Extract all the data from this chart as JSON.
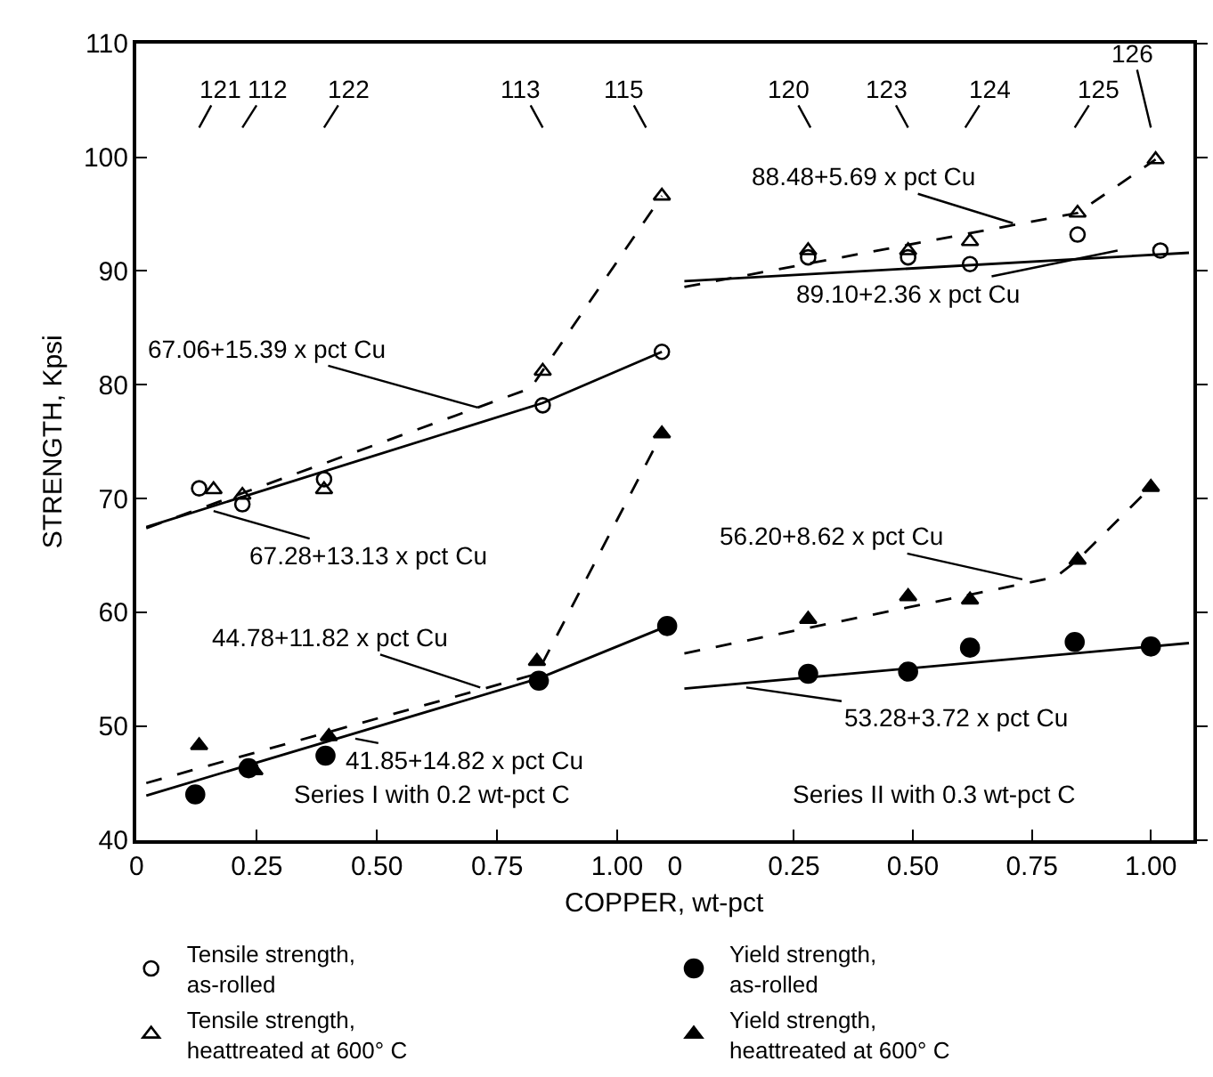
{
  "chart_data": [
    {
      "type": "scatter",
      "xlabel": "COPPER, wt-pct",
      "ylabel": "STRENGTH, Kpsi",
      "xlim": [
        0,
        1.12
      ],
      "xticks": [
        0,
        {
          "value": 0.25,
          "label": "0.25"
        },
        {
          "value": 0.5,
          "label": "0.50"
        },
        0.75,
        {
          "value": 1,
          "label": "1.00"
        }
      ],
      "ylim": [
        40,
        110
      ],
      "yticks": [
        40,
        50,
        60,
        70,
        80,
        90,
        100,
        110
      ],
      "legend": "bottom",
      "series": [
        {
          "name": "Tensile strength, as-rolled",
          "type": "scatter",
          "marker": "circle-open",
          "color": "#000000",
          "x": [
            0.13,
            0.22,
            0.39,
            0.845,
            1.093
          ],
          "values": [
            70.9,
            69.5,
            71.7,
            78.2,
            82.9
          ]
        },
        {
          "name": "Yield strength, as-rolled",
          "type": "scatter",
          "marker": "circle",
          "color": "#000000",
          "x": [
            0.122,
            0.233,
            0.393,
            0.837,
            1.104
          ],
          "values": [
            44.0,
            46.3,
            47.4,
            54.0,
            58.8
          ]
        },
        {
          "name": "Tensile strength, heattreated at 600° C",
          "type": "scatter",
          "marker": "triangle-open",
          "color": "#000000",
          "x": [
            0.16,
            0.22,
            0.39,
            0.845,
            1.093
          ],
          "values": [
            70.8,
            70.3,
            70.8,
            81.2,
            96.6
          ]
        },
        {
          "name": "Yield strength, heattreated at 600° C",
          "type": "scatter",
          "marker": "triangle",
          "color": "#000000",
          "x": [
            0.13,
            0.245,
            0.4,
            0.833,
            1.093
          ],
          "values": [
            48.3,
            46.1,
            49.1,
            55.7,
            75.7
          ]
        },
        {
          "type": "line",
          "line_style": "solid",
          "color": "#000000",
          "x": [
            0.02,
            0.845,
            1.093
          ],
          "values": [
            67.5,
            78.4,
            82.9
          ]
        },
        {
          "type": "line",
          "line_style": "dashed",
          "color": "#000000",
          "x": [
            0.02,
            0.82,
            1.093
          ],
          "values": [
            67.4,
            79.7,
            96.6
          ]
        },
        {
          "type": "line",
          "line_style": "solid",
          "color": "#000000",
          "x": [
            0.02,
            0.837,
            1.104
          ],
          "values": [
            43.9,
            54.2,
            58.8
          ]
        },
        {
          "type": "line",
          "line_style": "dashed",
          "color": "#000000",
          "x": [
            0.02,
            0.833,
            1.093
          ],
          "values": [
            45.0,
            54.6,
            75.7
          ]
        }
      ],
      "annotations": [
        "121",
        "112",
        "122",
        "113",
        "115",
        {
          "text": "67.06+15.39 x pct Cu",
          "x": 0.71,
          "y": 78.0
        },
        {
          "text": "67.28+13.13 x pct Cu",
          "x": 0.16,
          "y": 68.9
        },
        {
          "text": "44.78+11.82 x pct Cu",
          "x": 0.715,
          "y": 53.4
        },
        {
          "text": "41.85+14.82 x pct Cu",
          "x": 0.455,
          "y": 48.9
        },
        "Series I with 0.2 wt-pct C"
      ]
    },
    {
      "type": "scatter",
      "xlim": [
        0,
        1.09
      ],
      "xticks": [
        0,
        {
          "value": 0.25,
          "label": "0.25"
        },
        {
          "value": 0.5,
          "label": "0.50"
        },
        0.75,
        {
          "value": 1,
          "label": "1.00"
        }
      ],
      "ylim": [
        40,
        110
      ],
      "yticks": [
        40,
        50,
        60,
        70,
        80,
        90,
        100,
        110
      ],
      "tick_labels": "x",
      "series": [
        {
          "type": "scatter",
          "marker": "circle-open",
          "color": "#000000",
          "x": [
            0.28,
            0.49,
            0.62,
            0.846,
            1.02
          ],
          "values": [
            91.2,
            91.2,
            90.6,
            93.2,
            91.8
          ]
        },
        {
          "type": "scatter",
          "marker": "circle",
          "color": "#000000",
          "x": [
            0.28,
            0.49,
            0.62,
            0.84,
            1.0
          ],
          "values": [
            54.6,
            54.8,
            56.9,
            57.4,
            57.0
          ]
        },
        {
          "type": "scatter",
          "marker": "triangle-open",
          "color": "#000000",
          "x": [
            0.28,
            0.49,
            0.62,
            0.846,
            1.01
          ],
          "values": [
            91.8,
            91.8,
            92.6,
            95.1,
            99.8
          ]
        },
        {
          "type": "scatter",
          "marker": "triangle",
          "color": "#000000",
          "x": [
            0.28,
            0.49,
            0.62,
            0.846,
            1.0
          ],
          "values": [
            59.4,
            61.4,
            61.1,
            64.6,
            71.0
          ]
        },
        {
          "type": "line",
          "line_style": "solid",
          "color": "#000000",
          "x": [
            0.02,
            1.08
          ],
          "values": [
            89.1,
            91.6
          ]
        },
        {
          "type": "line",
          "line_style": "dashed",
          "color": "#000000",
          "x": [
            0.02,
            0.846,
            1.01
          ],
          "values": [
            88.6,
            95.1,
            99.8
          ]
        },
        {
          "type": "line",
          "line_style": "solid",
          "color": "#000000",
          "x": [
            0.02,
            1.08
          ],
          "values": [
            53.3,
            57.3
          ]
        },
        {
          "type": "line",
          "line_style": "dashed",
          "color": "#000000",
          "x": [
            0.02,
            0.8,
            0.846,
            1.0
          ],
          "values": [
            56.4,
            63.1,
            64.6,
            71.0
          ]
        }
      ],
      "annotations": [
        "120",
        "123",
        "124",
        "125",
        "126",
        {
          "text": "88.48+5.69 x pct Cu",
          "x": 0.71,
          "y": 94.2
        },
        {
          "text": "89.10+2.36 x pct Cu",
          "x": 0.93,
          "y": 91.8
        },
        {
          "text": "56.20+8.62 x pct Cu",
          "x": 0.73,
          "y": 62.9
        },
        {
          "text": "53.28+3.72 x pct Cu",
          "x": 0.15,
          "y": 53.4
        },
        "Series II with 0.3 wt-pct C"
      ]
    }
  ]
}
